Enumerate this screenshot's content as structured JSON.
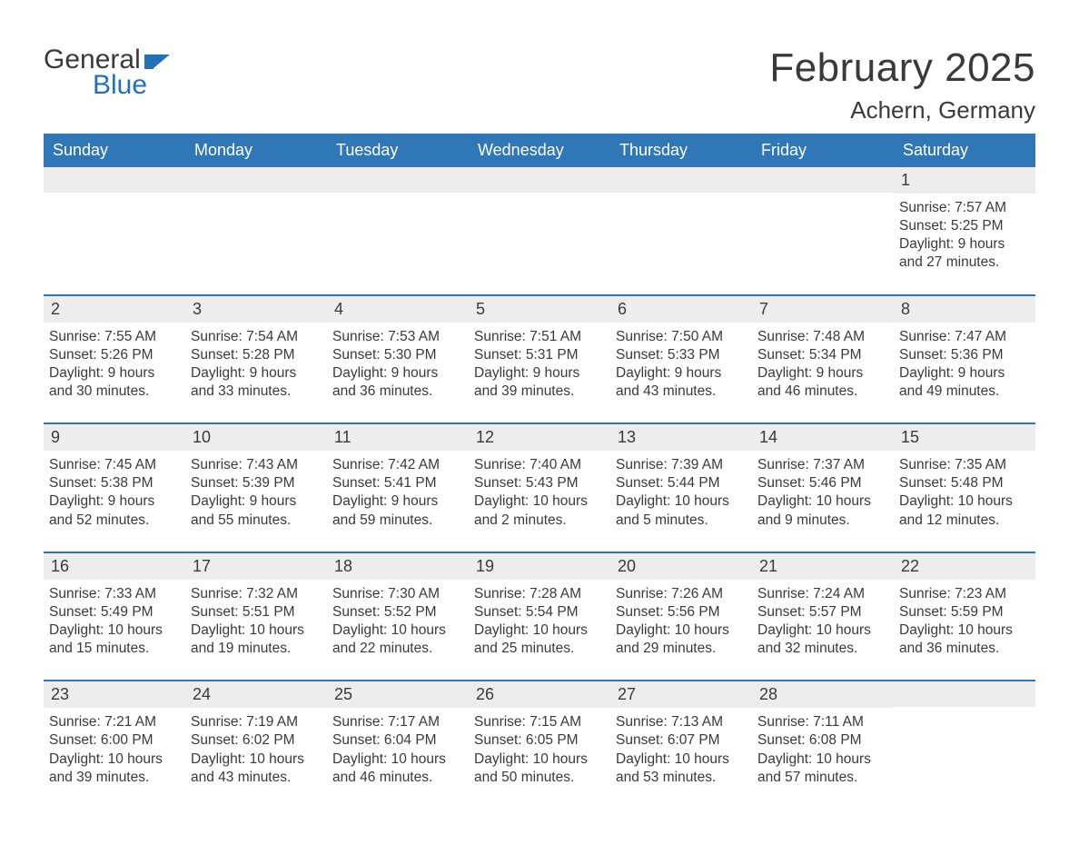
{
  "brand": {
    "word1": "General",
    "word2": "Blue",
    "flag_color": "#2372b9"
  },
  "title": {
    "month_year": "February 2025",
    "location": "Achern, Germany"
  },
  "styling": {
    "header_bg": "#2f77b6",
    "header_text": "#ffffff",
    "daynum_bg": "#ededed",
    "body_text": "#3a3a3a",
    "week_border": "#2f77b6",
    "page_bg": "#ffffff",
    "title_fontsize": 44,
    "location_fontsize": 26,
    "weekday_fontsize": 18,
    "daynum_fontsize": 18,
    "body_fontsize": 15.5
  },
  "weekdays": [
    "Sunday",
    "Monday",
    "Tuesday",
    "Wednesday",
    "Thursday",
    "Friday",
    "Saturday"
  ],
  "weeks": [
    [
      {
        "n": "",
        "sunrise": "",
        "sunset": "",
        "daylight": ""
      },
      {
        "n": "",
        "sunrise": "",
        "sunset": "",
        "daylight": ""
      },
      {
        "n": "",
        "sunrise": "",
        "sunset": "",
        "daylight": ""
      },
      {
        "n": "",
        "sunrise": "",
        "sunset": "",
        "daylight": ""
      },
      {
        "n": "",
        "sunrise": "",
        "sunset": "",
        "daylight": ""
      },
      {
        "n": "",
        "sunrise": "",
        "sunset": "",
        "daylight": ""
      },
      {
        "n": "1",
        "sunrise": "Sunrise: 7:57 AM",
        "sunset": "Sunset: 5:25 PM",
        "daylight": "Daylight: 9 hours and 27 minutes."
      }
    ],
    [
      {
        "n": "2",
        "sunrise": "Sunrise: 7:55 AM",
        "sunset": "Sunset: 5:26 PM",
        "daylight": "Daylight: 9 hours and 30 minutes."
      },
      {
        "n": "3",
        "sunrise": "Sunrise: 7:54 AM",
        "sunset": "Sunset: 5:28 PM",
        "daylight": "Daylight: 9 hours and 33 minutes."
      },
      {
        "n": "4",
        "sunrise": "Sunrise: 7:53 AM",
        "sunset": "Sunset: 5:30 PM",
        "daylight": "Daylight: 9 hours and 36 minutes."
      },
      {
        "n": "5",
        "sunrise": "Sunrise: 7:51 AM",
        "sunset": "Sunset: 5:31 PM",
        "daylight": "Daylight: 9 hours and 39 minutes."
      },
      {
        "n": "6",
        "sunrise": "Sunrise: 7:50 AM",
        "sunset": "Sunset: 5:33 PM",
        "daylight": "Daylight: 9 hours and 43 minutes."
      },
      {
        "n": "7",
        "sunrise": "Sunrise: 7:48 AM",
        "sunset": "Sunset: 5:34 PM",
        "daylight": "Daylight: 9 hours and 46 minutes."
      },
      {
        "n": "8",
        "sunrise": "Sunrise: 7:47 AM",
        "sunset": "Sunset: 5:36 PM",
        "daylight": "Daylight: 9 hours and 49 minutes."
      }
    ],
    [
      {
        "n": "9",
        "sunrise": "Sunrise: 7:45 AM",
        "sunset": "Sunset: 5:38 PM",
        "daylight": "Daylight: 9 hours and 52 minutes."
      },
      {
        "n": "10",
        "sunrise": "Sunrise: 7:43 AM",
        "sunset": "Sunset: 5:39 PM",
        "daylight": "Daylight: 9 hours and 55 minutes."
      },
      {
        "n": "11",
        "sunrise": "Sunrise: 7:42 AM",
        "sunset": "Sunset: 5:41 PM",
        "daylight": "Daylight: 9 hours and 59 minutes."
      },
      {
        "n": "12",
        "sunrise": "Sunrise: 7:40 AM",
        "sunset": "Sunset: 5:43 PM",
        "daylight": "Daylight: 10 hours and 2 minutes."
      },
      {
        "n": "13",
        "sunrise": "Sunrise: 7:39 AM",
        "sunset": "Sunset: 5:44 PM",
        "daylight": "Daylight: 10 hours and 5 minutes."
      },
      {
        "n": "14",
        "sunrise": "Sunrise: 7:37 AM",
        "sunset": "Sunset: 5:46 PM",
        "daylight": "Daylight: 10 hours and 9 minutes."
      },
      {
        "n": "15",
        "sunrise": "Sunrise: 7:35 AM",
        "sunset": "Sunset: 5:48 PM",
        "daylight": "Daylight: 10 hours and 12 minutes."
      }
    ],
    [
      {
        "n": "16",
        "sunrise": "Sunrise: 7:33 AM",
        "sunset": "Sunset: 5:49 PM",
        "daylight": "Daylight: 10 hours and 15 minutes."
      },
      {
        "n": "17",
        "sunrise": "Sunrise: 7:32 AM",
        "sunset": "Sunset: 5:51 PM",
        "daylight": "Daylight: 10 hours and 19 minutes."
      },
      {
        "n": "18",
        "sunrise": "Sunrise: 7:30 AM",
        "sunset": "Sunset: 5:52 PM",
        "daylight": "Daylight: 10 hours and 22 minutes."
      },
      {
        "n": "19",
        "sunrise": "Sunrise: 7:28 AM",
        "sunset": "Sunset: 5:54 PM",
        "daylight": "Daylight: 10 hours and 25 minutes."
      },
      {
        "n": "20",
        "sunrise": "Sunrise: 7:26 AM",
        "sunset": "Sunset: 5:56 PM",
        "daylight": "Daylight: 10 hours and 29 minutes."
      },
      {
        "n": "21",
        "sunrise": "Sunrise: 7:24 AM",
        "sunset": "Sunset: 5:57 PM",
        "daylight": "Daylight: 10 hours and 32 minutes."
      },
      {
        "n": "22",
        "sunrise": "Sunrise: 7:23 AM",
        "sunset": "Sunset: 5:59 PM",
        "daylight": "Daylight: 10 hours and 36 minutes."
      }
    ],
    [
      {
        "n": "23",
        "sunrise": "Sunrise: 7:21 AM",
        "sunset": "Sunset: 6:00 PM",
        "daylight": "Daylight: 10 hours and 39 minutes."
      },
      {
        "n": "24",
        "sunrise": "Sunrise: 7:19 AM",
        "sunset": "Sunset: 6:02 PM",
        "daylight": "Daylight: 10 hours and 43 minutes."
      },
      {
        "n": "25",
        "sunrise": "Sunrise: 7:17 AM",
        "sunset": "Sunset: 6:04 PM",
        "daylight": "Daylight: 10 hours and 46 minutes."
      },
      {
        "n": "26",
        "sunrise": "Sunrise: 7:15 AM",
        "sunset": "Sunset: 6:05 PM",
        "daylight": "Daylight: 10 hours and 50 minutes."
      },
      {
        "n": "27",
        "sunrise": "Sunrise: 7:13 AM",
        "sunset": "Sunset: 6:07 PM",
        "daylight": "Daylight: 10 hours and 53 minutes."
      },
      {
        "n": "28",
        "sunrise": "Sunrise: 7:11 AM",
        "sunset": "Sunset: 6:08 PM",
        "daylight": "Daylight: 10 hours and 57 minutes."
      },
      {
        "n": "",
        "sunrise": "",
        "sunset": "",
        "daylight": ""
      }
    ]
  ]
}
